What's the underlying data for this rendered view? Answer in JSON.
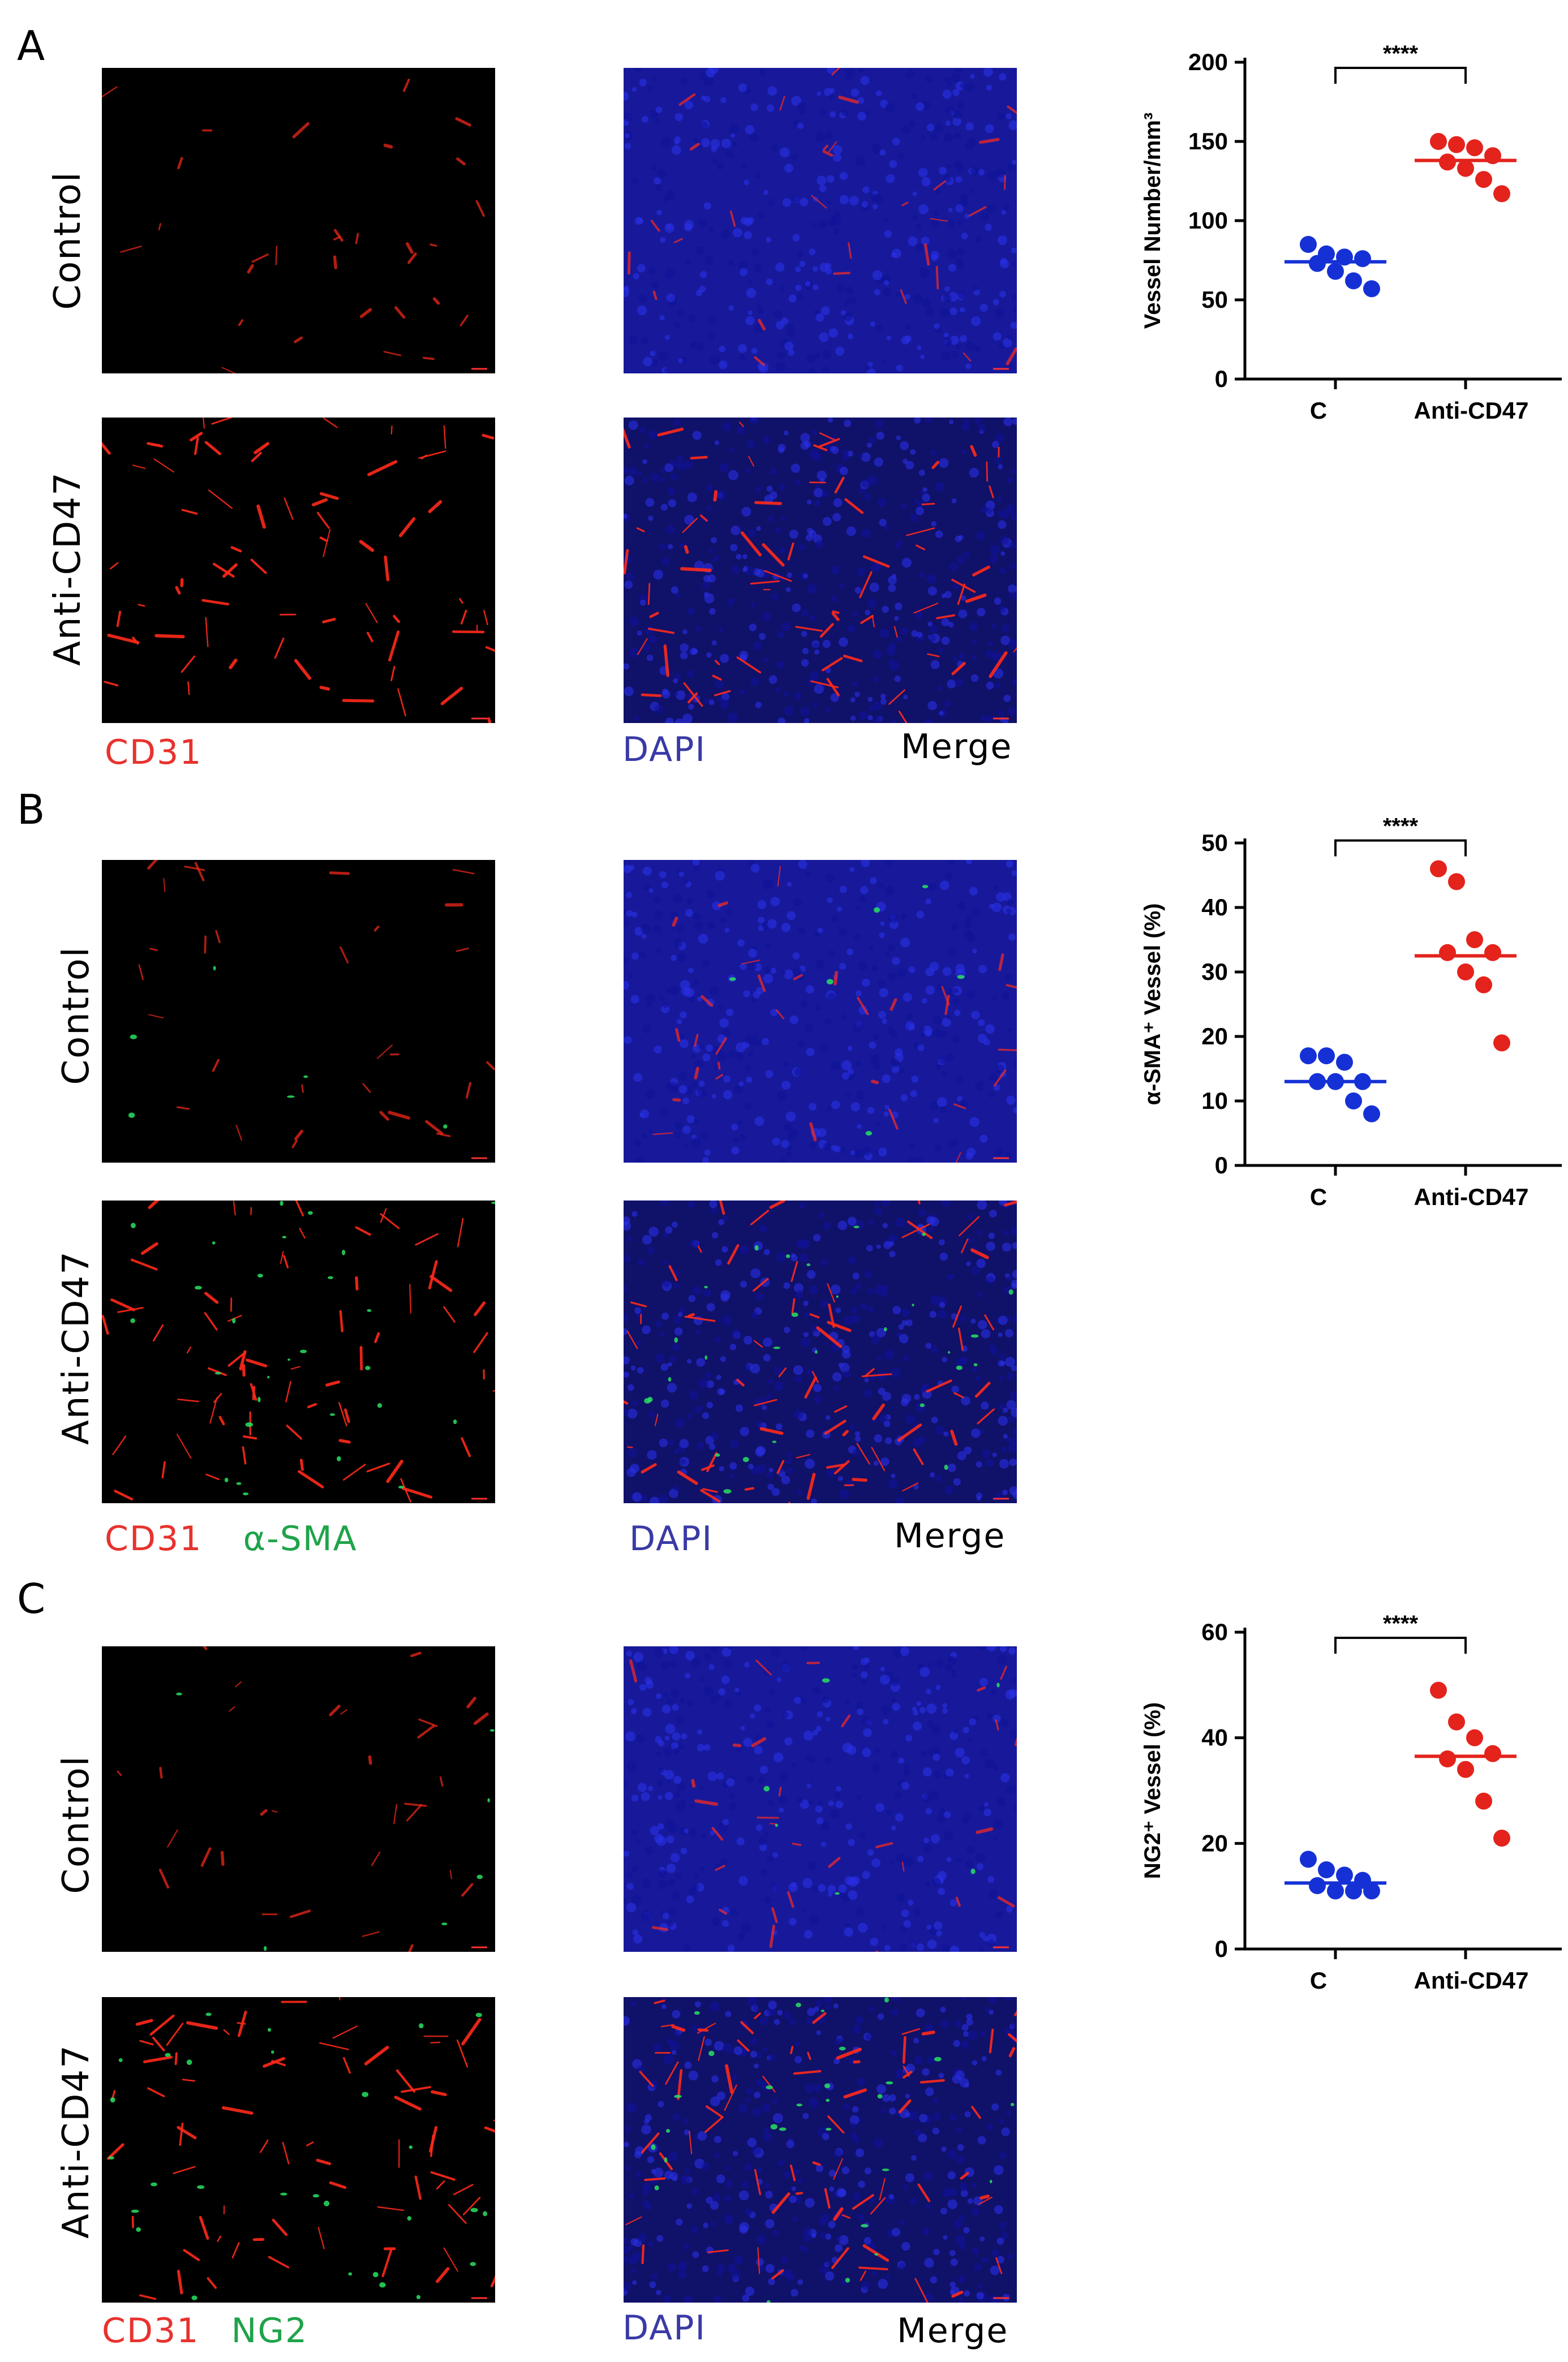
{
  "panels": [
    {
      "letter": "A",
      "rows": [
        "Control",
        "Anti-CD47"
      ],
      "stain_labels": [
        {
          "text": "CD31",
          "color": "#e8322e"
        },
        {
          "text": "",
          "color": "#1fa34a"
        },
        {
          "text": "DAPI",
          "color": "#3a3aa6"
        },
        {
          "text": "Merge",
          "color": "#000000"
        }
      ],
      "micrographs": {
        "left": "CD31 channel",
        "right": "Merge channel"
      }
    },
    {
      "letter": "B",
      "rows": [
        "Control",
        "Anti-CD47"
      ],
      "stain_labels": [
        {
          "text": "CD31",
          "color": "#e8322e"
        },
        {
          "text": "α-SMA",
          "color": "#1fa34a"
        },
        {
          "text": "DAPI",
          "color": "#3a3aa6"
        },
        {
          "text": "Merge",
          "color": "#000000"
        }
      ]
    },
    {
      "letter": "C",
      "rows": [
        "Control",
        "Anti-CD47"
      ],
      "stain_labels": [
        {
          "text": "CD31",
          "color": "#e8322e"
        },
        {
          "text": "NG2",
          "color": "#1fa34a"
        },
        {
          "text": "DAPI",
          "color": "#3a3aa6"
        },
        {
          "text": "Merge",
          "color": "#000000"
        }
      ]
    }
  ],
  "colors": {
    "control": "#1531d6",
    "treated": "#e3231c",
    "dapi": "#1d1fc0",
    "cd31": "#ff2a1a",
    "green": "#28e060"
  },
  "chart_data": [
    {
      "type": "scatter",
      "ylabel": "Vessel Number/mm³",
      "categories": [
        "C",
        "Anti-CD47"
      ],
      "ylim": [
        0,
        200
      ],
      "yticks": [
        0,
        50,
        100,
        150,
        200
      ],
      "significance": "****",
      "series": [
        {
          "name": "C",
          "values": [
            85,
            79,
            77,
            76,
            73,
            68,
            62,
            57
          ],
          "mean": 74
        },
        {
          "name": "Anti-CD47",
          "values": [
            150,
            148,
            146,
            141,
            137,
            133,
            126,
            117
          ],
          "mean": 138
        }
      ]
    },
    {
      "type": "scatter",
      "ylabel": "α-SMA⁺ Vessel (%)",
      "categories": [
        "C",
        "Anti-CD47"
      ],
      "ylim": [
        0,
        50
      ],
      "yticks": [
        0,
        10,
        20,
        30,
        40,
        50
      ],
      "significance": "****",
      "series": [
        {
          "name": "C",
          "values": [
            17,
            17,
            16,
            13,
            13,
            13,
            10,
            8
          ],
          "mean": 13
        },
        {
          "name": "Anti-CD47",
          "values": [
            46,
            44,
            35,
            33,
            33,
            30,
            28,
            19
          ],
          "mean": 32.5
        }
      ]
    },
    {
      "type": "scatter",
      "ylabel": "NG2⁺ Vessel (%)",
      "categories": [
        "C",
        "Anti-CD47"
      ],
      "ylim": [
        0,
        60
      ],
      "yticks": [
        0,
        20,
        40,
        60
      ],
      "significance": "****",
      "series": [
        {
          "name": "C",
          "values": [
            17,
            15,
            14,
            13,
            12,
            11,
            11,
            11
          ],
          "mean": 12.5
        },
        {
          "name": "Anti-CD47",
          "values": [
            49,
            43,
            40,
            37,
            36,
            34,
            28,
            21
          ],
          "mean": 36.5
        }
      ]
    }
  ]
}
